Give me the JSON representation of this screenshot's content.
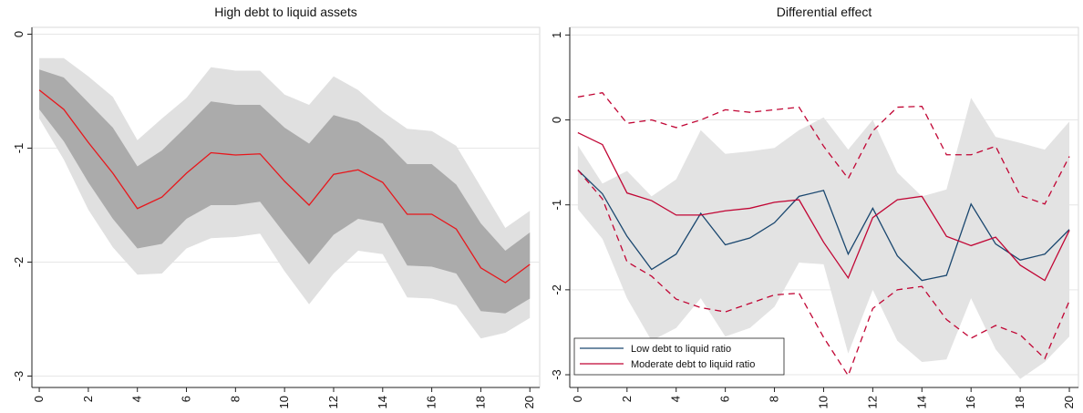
{
  "chart_data": [
    {
      "type": "line",
      "title": "High debt to liquid assets",
      "x": [
        0,
        1,
        2,
        3,
        4,
        5,
        6,
        7,
        8,
        9,
        10,
        11,
        12,
        13,
        14,
        15,
        16,
        17,
        18,
        19,
        20
      ],
      "xlim": [
        -0.3,
        20.4
      ],
      "xticks": [
        0,
        2,
        4,
        6,
        8,
        10,
        12,
        14,
        16,
        18,
        20
      ],
      "ylim": [
        -3.1,
        0.06
      ],
      "yticks": [
        0,
        -1,
        -2,
        -3
      ],
      "grid": true,
      "bands": [
        {
          "color": "#e0e0e0",
          "upper": [
            -0.21,
            -0.21,
            -0.37,
            -0.55,
            -0.93,
            -0.74,
            -0.56,
            -0.29,
            -0.32,
            -0.32,
            -0.53,
            -0.62,
            -0.37,
            -0.49,
            -0.68,
            -0.83,
            -0.85,
            -0.98,
            -1.34,
            -1.7,
            -1.55
          ],
          "lower": [
            -0.74,
            -1.1,
            -1.54,
            -1.87,
            -2.11,
            -2.1,
            -1.88,
            -1.79,
            -1.78,
            -1.75,
            -2.08,
            -2.37,
            -2.1,
            -1.9,
            -1.93,
            -2.31,
            -2.32,
            -2.38,
            -2.67,
            -2.62,
            -2.49
          ]
        },
        {
          "color": "#ababab",
          "upper": [
            -0.31,
            -0.38,
            -0.6,
            -0.82,
            -1.16,
            -1.02,
            -0.81,
            -0.59,
            -0.62,
            -0.62,
            -0.82,
            -0.96,
            -0.71,
            -0.77,
            -0.92,
            -1.14,
            -1.14,
            -1.32,
            -1.66,
            -1.9,
            -1.74
          ],
          "lower": [
            -0.66,
            -0.94,
            -1.3,
            -1.62,
            -1.88,
            -1.84,
            -1.62,
            -1.5,
            -1.5,
            -1.47,
            -1.75,
            -2.02,
            -1.76,
            -1.62,
            -1.66,
            -2.03,
            -2.04,
            -2.1,
            -2.43,
            -2.45,
            -2.32
          ]
        }
      ],
      "series": [
        {
          "color": "#e8161b",
          "dash": false,
          "values": [
            -0.49,
            -0.66,
            -0.95,
            -1.22,
            -1.53,
            -1.43,
            -1.22,
            -1.04,
            -1.06,
            -1.05,
            -1.29,
            -1.5,
            -1.23,
            -1.19,
            -1.3,
            -1.58,
            -1.58,
            -1.71,
            -2.05,
            -2.18,
            -2.02
          ]
        }
      ]
    },
    {
      "type": "line",
      "title": "Differential effect",
      "x": [
        0,
        1,
        2,
        3,
        4,
        5,
        6,
        7,
        8,
        9,
        10,
        11,
        12,
        13,
        14,
        15,
        16,
        17,
        18,
        19,
        20
      ],
      "xlim": [
        -0.33,
        20.37
      ],
      "xticks": [
        0,
        2,
        4,
        6,
        8,
        10,
        12,
        14,
        16,
        18,
        20
      ],
      "ylim": [
        -3.15,
        1.09
      ],
      "yticks": [
        1,
        0,
        -1,
        -2,
        -3
      ],
      "grid": true,
      "legend": "lower left",
      "bands": [
        {
          "color": "#e3e3e3",
          "upper": [
            -0.3,
            -0.75,
            -0.6,
            -0.9,
            -0.7,
            -0.12,
            -0.4,
            -0.37,
            -0.33,
            -0.12,
            0.03,
            -0.35,
            0.0,
            -0.62,
            -0.9,
            -0.82,
            0.26,
            -0.2,
            -0.27,
            -0.35,
            -0.02
          ],
          "lower": [
            -1.05,
            -1.4,
            -2.1,
            -2.6,
            -2.45,
            -2.1,
            -2.55,
            -2.45,
            -2.2,
            -1.68,
            -1.7,
            -2.75,
            -2.0,
            -2.6,
            -2.85,
            -2.82,
            -2.1,
            -2.7,
            -3.05,
            -2.85,
            -2.55
          ]
        }
      ],
      "series": [
        {
          "name": "Low debt to liquid ratio",
          "color": "#1a476f",
          "dash": false,
          "values": [
            -0.59,
            -0.87,
            -1.37,
            -1.76,
            -1.58,
            -1.1,
            -1.47,
            -1.39,
            -1.21,
            -0.9,
            -0.83,
            -1.58,
            -1.04,
            -1.6,
            -1.89,
            -1.83,
            -0.99,
            -1.46,
            -1.65,
            -1.58,
            -1.29
          ]
        },
        {
          "name": "Moderate debt to liquid ratio",
          "color": "#c10534",
          "dash": false,
          "values": [
            -0.15,
            -0.29,
            -0.86,
            -0.95,
            -1.12,
            -1.12,
            -1.07,
            -1.04,
            -0.97,
            -0.94,
            -1.44,
            -1.86,
            -1.15,
            -0.94,
            -0.9,
            -1.37,
            -1.48,
            -1.38,
            -1.71,
            -1.89,
            -1.3
          ]
        },
        {
          "color": "#c10534",
          "dash": true,
          "values": [
            0.27,
            0.32,
            -0.04,
            0.0,
            -0.09,
            0.0,
            0.12,
            0.09,
            0.12,
            0.15,
            -0.31,
            -0.69,
            -0.13,
            0.15,
            0.16,
            -0.41,
            -0.41,
            -0.31,
            -0.89,
            -0.99,
            -0.43
          ]
        },
        {
          "color": "#c10534",
          "dash": true,
          "values": [
            -0.59,
            -0.93,
            -1.67,
            -1.84,
            -2.11,
            -2.21,
            -2.26,
            -2.16,
            -2.06,
            -2.04,
            -2.56,
            -3.01,
            -2.22,
            -2.0,
            -1.96,
            -2.35,
            -2.57,
            -2.42,
            -2.53,
            -2.81,
            -2.13
          ]
        }
      ]
    }
  ]
}
